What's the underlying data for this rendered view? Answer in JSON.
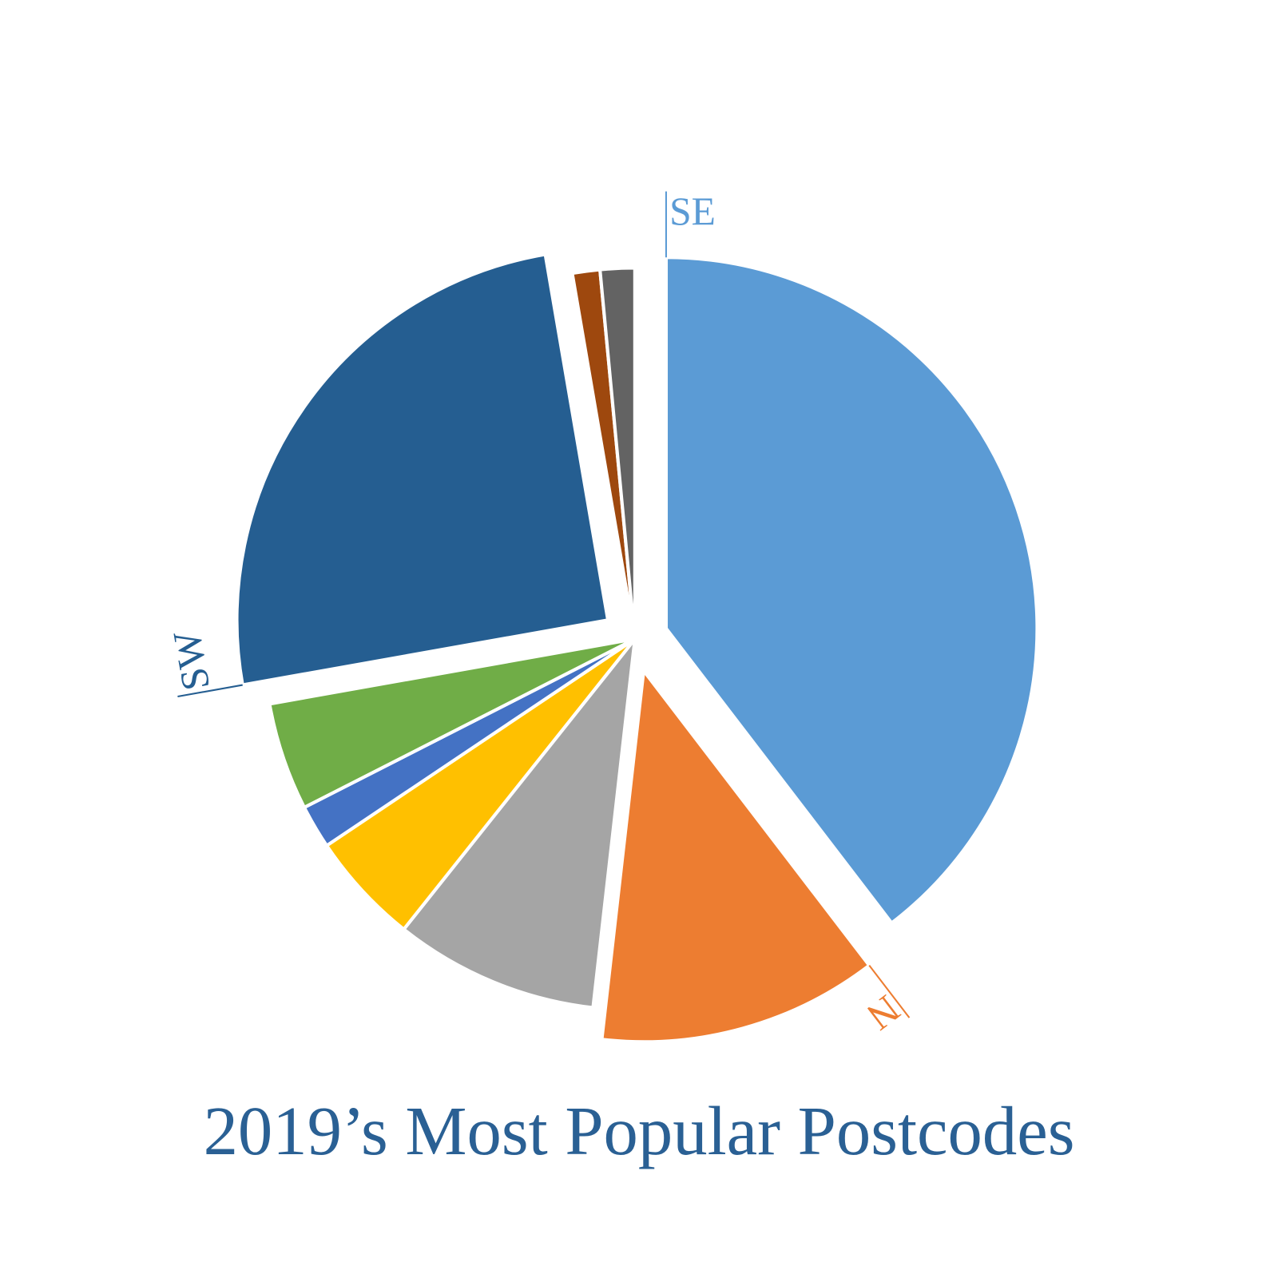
{
  "chart_data": {
    "type": "pie",
    "title": "2019’s Most Popular Postcodes",
    "categories": [
      "SE",
      "N",
      null,
      null,
      null,
      null,
      "SW",
      null,
      null
    ],
    "values": [
      39.6,
      12.2,
      8.9,
      4.9,
      1.9,
      4.7,
      25.1,
      1.2,
      1.5
    ],
    "colors": [
      "#5b9bd5",
      "#ed7d31",
      "#a5a5a5",
      "#ffc000",
      "#4472c4",
      "#70ad47",
      "#255e91",
      "#9e480e",
      "#636363"
    ]
  }
}
